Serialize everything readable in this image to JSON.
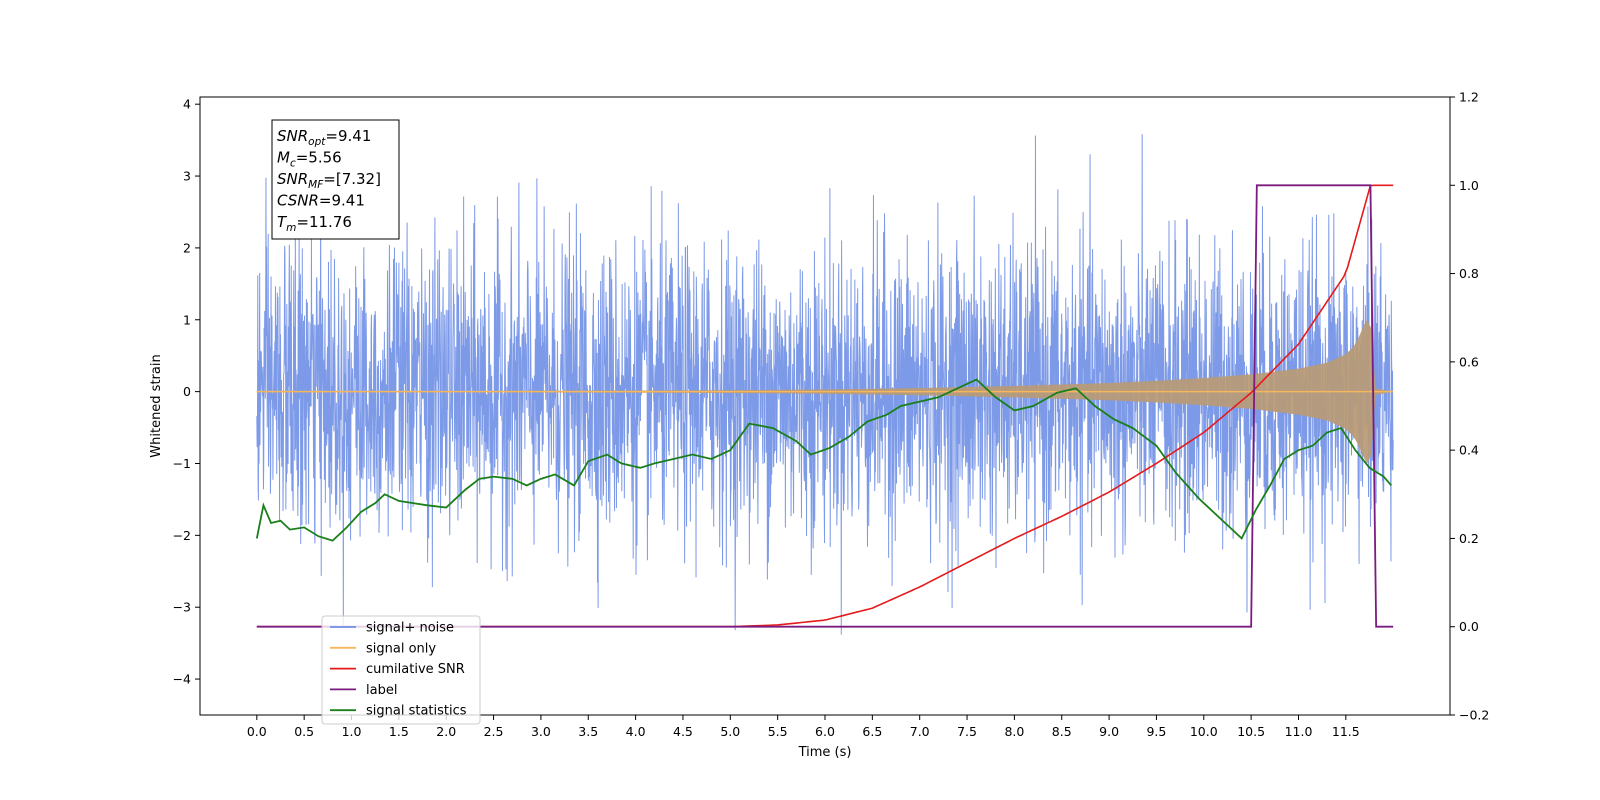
{
  "chart_data": {
    "type": "line",
    "xlabel": "Time (s)",
    "ylabel_left": "Whitened strain",
    "ylabel_right": "",
    "xlim": [
      -0.6,
      12.6
    ],
    "ylim_left": [
      -4.5,
      4.1
    ],
    "ylim_right": [
      -0.2,
      1.2
    ],
    "x_ticks": [
      0.0,
      0.5,
      1.0,
      1.5,
      2.0,
      2.5,
      3.0,
      3.5,
      4.0,
      4.5,
      5.0,
      5.5,
      6.0,
      6.5,
      7.0,
      7.5,
      8.0,
      8.5,
      9.0,
      9.5,
      10.0,
      10.5,
      11.0,
      11.5
    ],
    "x_tick_labels": [
      "0.0",
      "0.5",
      "1.0",
      "1.5",
      "2.0",
      "2.5",
      "3.0",
      "3.5",
      "4.0",
      "4.5",
      "5.0",
      "5.5",
      "6.0",
      "6.5",
      "7.0",
      "7.5",
      "8.0",
      "8.5",
      "9.0",
      "9.5",
      "10.0",
      "10.5",
      "11.0",
      "11.5"
    ],
    "y_ticks_left": [
      -4,
      -3,
      -2,
      -1,
      0,
      1,
      2,
      3,
      4
    ],
    "y_tick_labels_left": [
      "−4",
      "−3",
      "−2",
      "−1",
      "0",
      "1",
      "2",
      "3",
      "4"
    ],
    "y_ticks_right": [
      -0.2,
      0.0,
      0.2,
      0.4,
      0.6,
      0.8,
      1.0,
      1.2
    ],
    "y_tick_labels_right": [
      "−0.2",
      "0.0",
      "0.2",
      "0.4",
      "0.6",
      "0.8",
      "1.0",
      "1.2"
    ],
    "grid": false,
    "legend_position": "lower-left",
    "annotation": {
      "lines": [
        {
          "var": "SNR",
          "sub": "opt",
          "value": "=9.41"
        },
        {
          "var": "M",
          "sub": "c",
          "value": "=5.56"
        },
        {
          "var": "SNR",
          "sub": "MF",
          "value": "=[7.32]"
        },
        {
          "var": "CSNR",
          "sub": "",
          "value": "=9.41"
        },
        {
          "var": "T",
          "sub": "m",
          "value": "=11.76"
        }
      ]
    },
    "series": [
      {
        "name": "signal+ noise",
        "axis": "left",
        "color": "#6f8fe6",
        "x_range": [
          0.0,
          12.0
        ],
        "description": "whitened noise, roughly within ±2.5 with peaks to ±3.7"
      },
      {
        "name": "signal only",
        "axis": "left",
        "color": "#f5b65c",
        "x": [
          0.0,
          2.0,
          4.0,
          5.0,
          6.0,
          7.0,
          8.0,
          9.0,
          9.5,
          10.0,
          10.5,
          11.0,
          11.3,
          11.5,
          11.6,
          11.7,
          11.76,
          11.8,
          12.0
        ],
        "envelope": [
          0.01,
          0.01,
          0.015,
          0.02,
          0.03,
          0.05,
          0.08,
          0.12,
          0.15,
          0.19,
          0.24,
          0.32,
          0.4,
          0.52,
          0.65,
          0.95,
          1.1,
          0.05,
          0.0
        ]
      },
      {
        "name": "cumilative SNR",
        "axis": "right",
        "color": "#e41a1c",
        "x": [
          0.0,
          5.0,
          5.5,
          6.0,
          6.5,
          7.0,
          7.5,
          8.0,
          8.5,
          9.0,
          9.5,
          10.0,
          10.5,
          11.0,
          11.5,
          11.76,
          12.0
        ],
        "values": [
          0.0,
          0.0,
          0.004,
          0.015,
          0.042,
          0.09,
          0.145,
          0.2,
          0.25,
          0.305,
          0.37,
          0.44,
          0.53,
          0.64,
          0.8,
          1.0,
          1.0
        ]
      },
      {
        "name": "label",
        "axis": "right",
        "color": "#7b1a7f",
        "x": [
          0.0,
          10.5,
          10.56,
          11.76,
          11.82,
          12.0
        ],
        "values": [
          0.0,
          0.0,
          1.0,
          1.0,
          0.0,
          0.0
        ]
      },
      {
        "name": "signal statistics",
        "axis": "right",
        "color": "#1a7f1a",
        "x": [
          0.0,
          0.07,
          0.15,
          0.25,
          0.35,
          0.5,
          0.65,
          0.8,
          0.95,
          1.1,
          1.25,
          1.35,
          1.5,
          1.65,
          1.8,
          2.0,
          2.2,
          2.35,
          2.5,
          2.7,
          2.85,
          3.0,
          3.15,
          3.35,
          3.5,
          3.7,
          3.85,
          4.05,
          4.2,
          4.4,
          4.6,
          4.8,
          5.0,
          5.2,
          5.45,
          5.7,
          5.85,
          6.05,
          6.25,
          6.45,
          6.65,
          6.8,
          7.0,
          7.2,
          7.4,
          7.6,
          7.8,
          8.0,
          8.2,
          8.45,
          8.65,
          8.85,
          9.05,
          9.25,
          9.5,
          9.7,
          9.95,
          10.2,
          10.4,
          10.55,
          10.7,
          10.85,
          11.0,
          11.15,
          11.3,
          11.45,
          11.6,
          11.75,
          11.9,
          11.98
        ],
        "values": [
          0.2,
          0.275,
          0.235,
          0.24,
          0.22,
          0.225,
          0.205,
          0.195,
          0.225,
          0.26,
          0.28,
          0.3,
          0.285,
          0.28,
          0.275,
          0.27,
          0.31,
          0.335,
          0.34,
          0.335,
          0.32,
          0.335,
          0.345,
          0.32,
          0.375,
          0.39,
          0.37,
          0.36,
          0.37,
          0.38,
          0.39,
          0.38,
          0.4,
          0.46,
          0.45,
          0.42,
          0.39,
          0.405,
          0.43,
          0.465,
          0.48,
          0.5,
          0.51,
          0.52,
          0.54,
          0.56,
          0.52,
          0.49,
          0.5,
          0.53,
          0.54,
          0.5,
          0.47,
          0.45,
          0.41,
          0.35,
          0.29,
          0.24,
          0.2,
          0.265,
          0.32,
          0.38,
          0.4,
          0.41,
          0.44,
          0.45,
          0.4,
          0.36,
          0.34,
          0.32
        ]
      }
    ]
  }
}
